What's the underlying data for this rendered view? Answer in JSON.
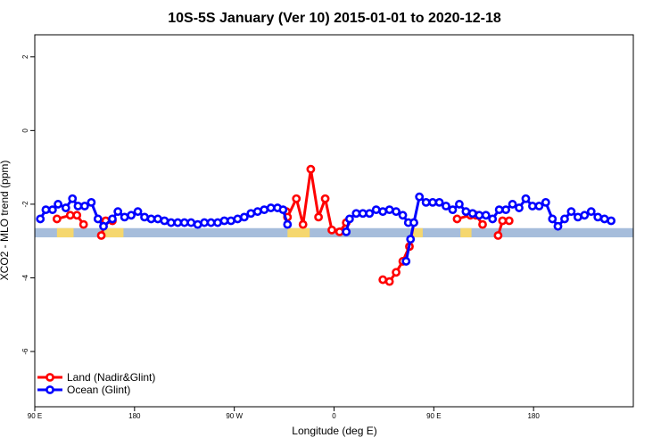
{
  "chart_data": {
    "type": "line",
    "title": "10S-5S January (Ver 10)   2015-01-01 to 2020-12-18",
    "xlabel": "Longitude (deg E)",
    "ylabel": "XCO2 - MLO trend (ppm)",
    "xlim": [
      0,
      540
    ],
    "ylim": [
      -7.5,
      2.6
    ],
    "x_ticks": [
      {
        "x": 0,
        "label": "90 E"
      },
      {
        "x": 90,
        "label": "180"
      },
      {
        "x": 180,
        "label": "90 W"
      },
      {
        "x": 270,
        "label": "0"
      },
      {
        "x": 360,
        "label": "90 E"
      },
      {
        "x": 450,
        "label": "180"
      }
    ],
    "y_ticks": [
      {
        "y": 2,
        "label": "2"
      },
      {
        "y": 0,
        "label": "0"
      },
      {
        "y": -2,
        "label": "-2"
      },
      {
        "y": -4,
        "label": "-4"
      },
      {
        "y": -6,
        "label": "-6"
      }
    ],
    "colors": {
      "land": "#ff0000",
      "ocean": "#0000ff",
      "map_ocean": "#a6bddb",
      "map_land": "#f5d76e"
    },
    "map_strip": {
      "y_top": -2.65,
      "y_bottom": -2.9,
      "land_ranges": [
        [
          20,
          35
        ],
        [
          60,
          80
        ],
        [
          228,
          248
        ],
        [
          340,
          350
        ],
        [
          384,
          394
        ]
      ]
    },
    "series": [
      {
        "name": "Land (Nadir&Glint)",
        "key": "land",
        "segments": [
          [
            [
              20,
              -2.4
            ],
            [
              32,
              -2.3
            ],
            [
              38,
              -2.3
            ],
            [
              44,
              -2.55
            ]
          ],
          [
            [
              60,
              -2.85
            ],
            [
              64,
              -2.45
            ],
            [
              70,
              -2.45
            ]
          ],
          [
            [
              227,
              -2.2
            ],
            [
              228,
              -2.35
            ],
            [
              236,
              -1.85
            ],
            [
              242,
              -2.55
            ],
            [
              249,
              -1.05
            ],
            [
              256,
              -2.35
            ],
            [
              262,
              -1.85
            ],
            [
              268,
              -2.7
            ],
            [
              275,
              -2.75
            ],
            [
              281,
              -2.5
            ]
          ],
          [
            [
              314,
              -4.05
            ],
            [
              320,
              -4.1
            ],
            [
              326,
              -3.85
            ],
            [
              332,
              -3.55
            ],
            [
              338,
              -3.15
            ],
            [
              342,
              -2.5
            ]
          ],
          [
            [
              381,
              -2.4
            ],
            [
              393,
              -2.3
            ],
            [
              398,
              -2.3
            ],
            [
              404,
              -2.55
            ]
          ],
          [
            [
              418,
              -2.85
            ],
            [
              422,
              -2.45
            ],
            [
              428,
              -2.45
            ]
          ]
        ]
      },
      {
        "name": "Ocean (Glint)",
        "key": "ocean",
        "segments": [
          [
            [
              5,
              -2.4
            ],
            [
              10,
              -2.15
            ],
            [
              16,
              -2.15
            ],
            [
              21,
              -2.0
            ],
            [
              28,
              -2.1
            ],
            [
              34,
              -1.85
            ],
            [
              39,
              -2.05
            ],
            [
              45,
              -2.05
            ],
            [
              51,
              -1.95
            ],
            [
              57,
              -2.4
            ],
            [
              62,
              -2.6
            ],
            [
              70,
              -2.4
            ],
            [
              75,
              -2.2
            ],
            [
              81,
              -2.35
            ],
            [
              87,
              -2.3
            ],
            [
              93,
              -2.2
            ],
            [
              99,
              -2.35
            ],
            [
              105,
              -2.4
            ],
            [
              111,
              -2.4
            ],
            [
              117,
              -2.45
            ],
            [
              123,
              -2.5
            ],
            [
              129,
              -2.5
            ],
            [
              135,
              -2.5
            ],
            [
              141,
              -2.5
            ],
            [
              147,
              -2.55
            ],
            [
              153,
              -2.5
            ],
            [
              159,
              -2.5
            ],
            [
              165,
              -2.5
            ],
            [
              171,
              -2.45
            ],
            [
              177,
              -2.45
            ],
            [
              183,
              -2.4
            ],
            [
              189,
              -2.35
            ],
            [
              195,
              -2.25
            ],
            [
              201,
              -2.2
            ],
            [
              207,
              -2.15
            ],
            [
              213,
              -2.1
            ],
            [
              219,
              -2.1
            ],
            [
              224,
              -2.15
            ],
            [
              228,
              -2.55
            ]
          ],
          [
            [
              281,
              -2.75
            ],
            [
              284,
              -2.4
            ],
            [
              290,
              -2.25
            ],
            [
              296,
              -2.25
            ],
            [
              302,
              -2.25
            ],
            [
              308,
              -2.15
            ],
            [
              314,
              -2.2
            ],
            [
              320,
              -2.15
            ],
            [
              326,
              -2.2
            ],
            [
              332,
              -2.3
            ],
            [
              337,
              -2.5
            ]
          ],
          [
            [
              335,
              -3.55
            ],
            [
              339,
              -2.95
            ],
            [
              342,
              -2.5
            ],
            [
              347,
              -1.8
            ],
            [
              353,
              -1.95
            ],
            [
              359,
              -1.95
            ],
            [
              365,
              -1.95
            ],
            [
              371,
              -2.05
            ],
            [
              377,
              -2.15
            ],
            [
              383,
              -2.0
            ],
            [
              389,
              -2.2
            ],
            [
              395,
              -2.25
            ],
            [
              401,
              -2.3
            ],
            [
              407,
              -2.3
            ],
            [
              413,
              -2.4
            ],
            [
              419,
              -2.15
            ],
            [
              425,
              -2.15
            ],
            [
              431,
              -2.0
            ],
            [
              437,
              -2.1
            ],
            [
              443,
              -1.85
            ],
            [
              449,
              -2.05
            ],
            [
              455,
              -2.05
            ],
            [
              461,
              -1.95
            ],
            [
              467,
              -2.4
            ],
            [
              472,
              -2.6
            ],
            [
              478,
              -2.4
            ],
            [
              484,
              -2.2
            ],
            [
              490,
              -2.35
            ],
            [
              496,
              -2.3
            ],
            [
              502,
              -2.2
            ],
            [
              508,
              -2.35
            ],
            [
              514,
              -2.4
            ],
            [
              520,
              -2.45
            ]
          ]
        ]
      }
    ],
    "legend": {
      "position": "bottom-left",
      "entries": [
        "Land (Nadir&Glint)",
        "Ocean (Glint)"
      ]
    }
  }
}
